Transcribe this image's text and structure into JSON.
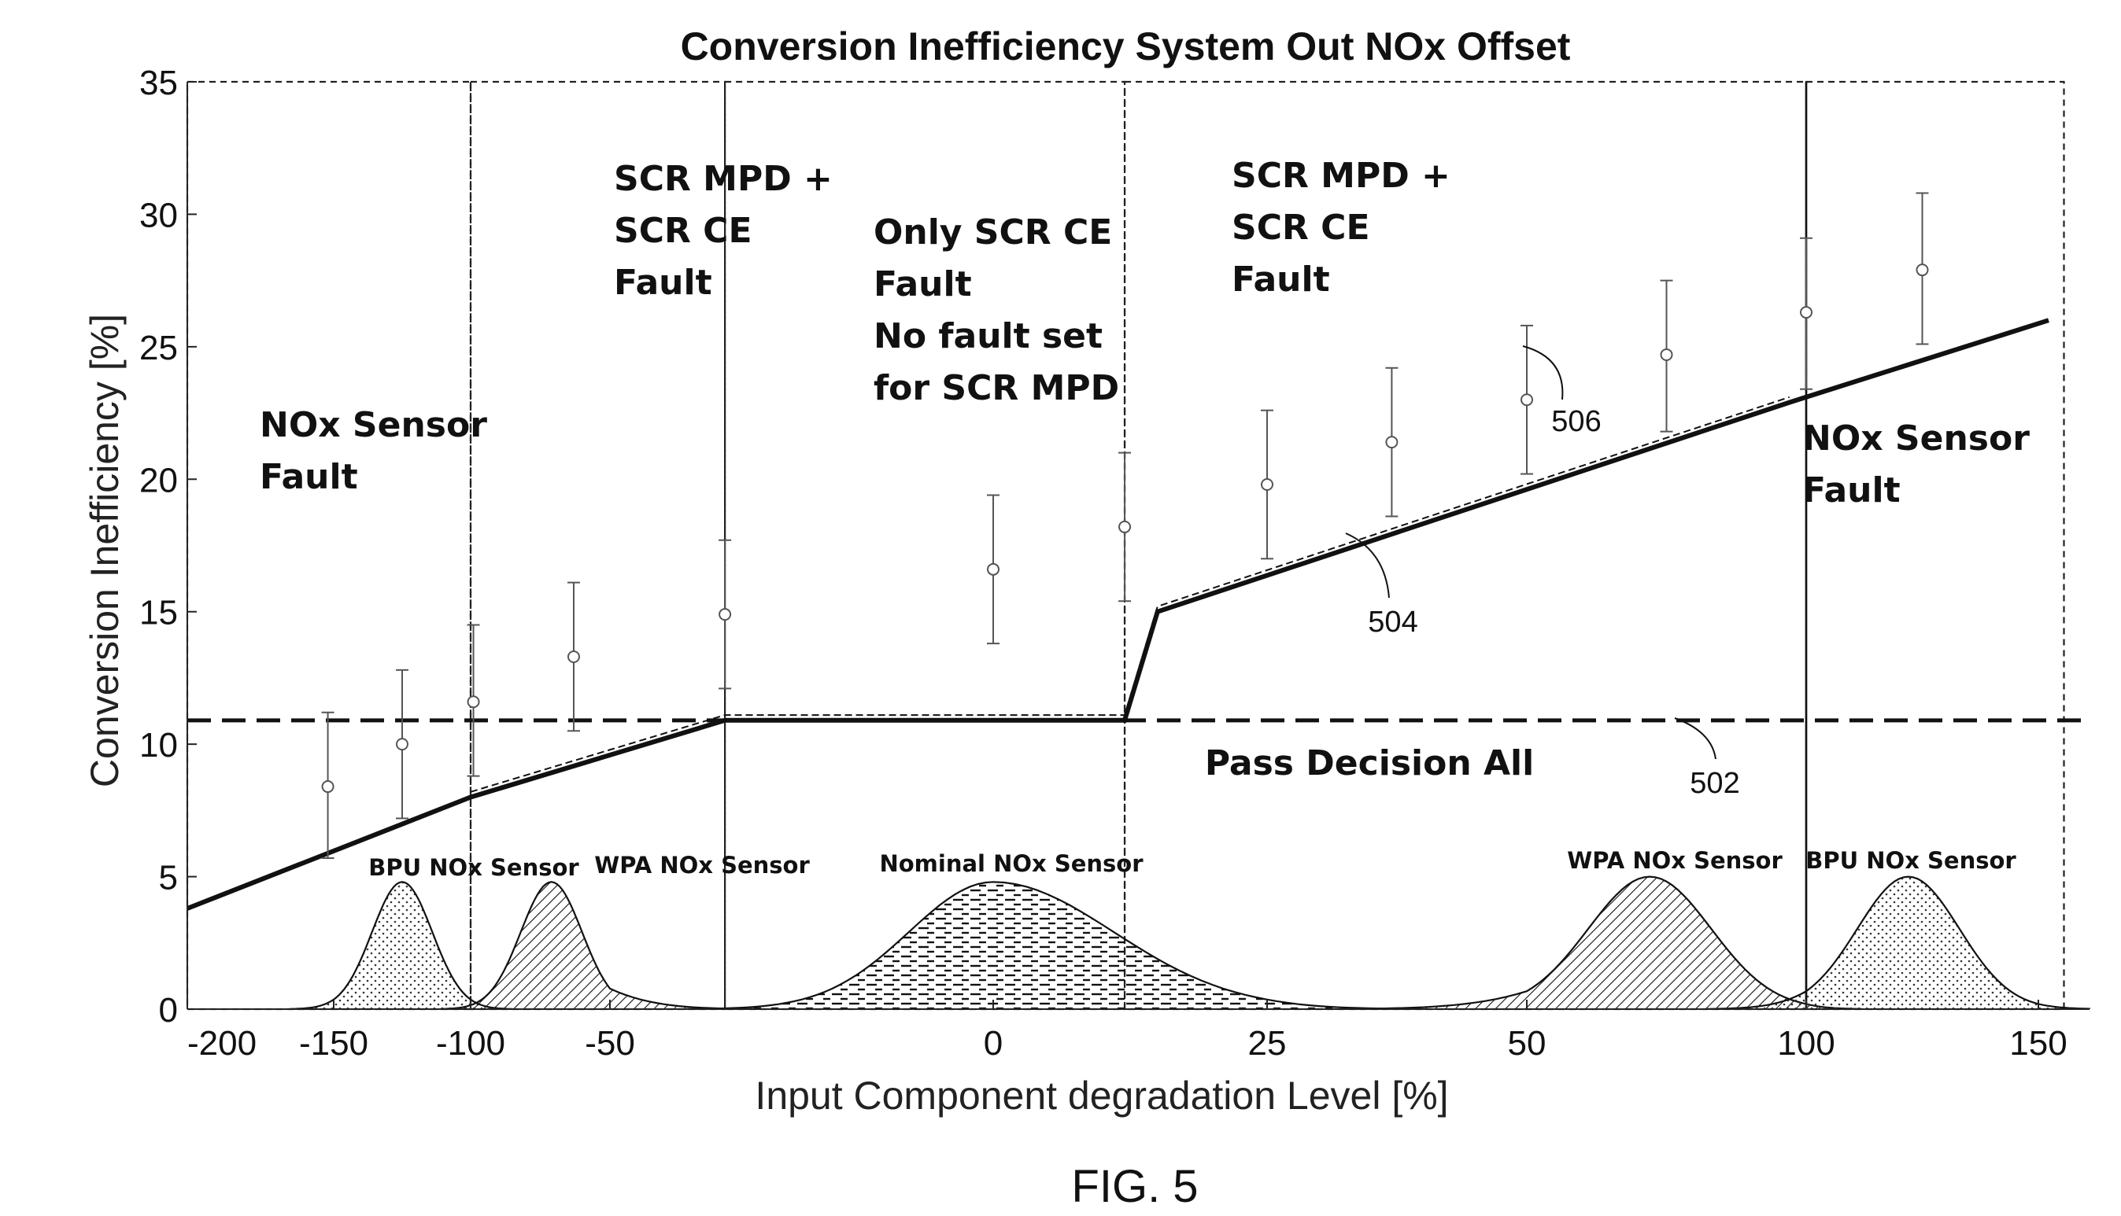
{
  "chart_data": {
    "type": "line",
    "title": "Conversion Inefficiency System Out NOx Offset",
    "xlabel": "Input Component degradation Level [%]",
    "ylabel": "Conversion Inefficiency [%]",
    "xlim": [
      -200,
      160
    ],
    "ylim": [
      0,
      35
    ],
    "x_ticks": [
      -200,
      -150,
      -100,
      -50,
      0,
      25,
      50,
      100,
      150
    ],
    "x_tick_labels": [
      "-200",
      "-150",
      "-100",
      "-50",
      "0",
      "25",
      "50",
      "100",
      "150"
    ],
    "y_ticks": [
      0,
      5,
      10,
      15,
      20,
      25,
      30,
      35
    ],
    "y_tick_labels": [
      "0",
      "5",
      "10",
      "15",
      "20",
      "25",
      "30",
      "35"
    ],
    "threshold": {
      "y": 10.9,
      "ref": "502",
      "label": "Pass Decision All"
    },
    "series": [
      {
        "ref": "504",
        "x": [
          -200,
          -100,
          -35,
          12,
          15,
          97,
          152
        ],
        "y": [
          3.8,
          8.0,
          10.9,
          10.9,
          15.0,
          22.9,
          26.0
        ]
      },
      {
        "ref": "506",
        "x": [
          -100,
          -35,
          12,
          15,
          97
        ],
        "y": [
          8.2,
          11.1,
          11.1,
          15.2,
          23.1
        ]
      }
    ],
    "error_bars": [
      {
        "x": -152,
        "y": 8.4,
        "low": 5.7,
        "high": 11.2
      },
      {
        "x": -125,
        "y": 10.0,
        "low": 7.2,
        "high": 12.8
      },
      {
        "x": -99,
        "y": 11.6,
        "low": 8.8,
        "high": 14.5
      },
      {
        "x": -63,
        "y": 13.3,
        "low": 10.5,
        "high": 16.1
      },
      {
        "x": -35,
        "y": 14.9,
        "low": 12.1,
        "high": 17.7
      },
      {
        "x": 0,
        "y": 16.6,
        "low": 13.8,
        "high": 19.4
      },
      {
        "x": 12,
        "y": 18.2,
        "low": 15.4,
        "high": 21.0
      },
      {
        "x": 25,
        "y": 19.8,
        "low": 17.0,
        "high": 22.6
      },
      {
        "x": 37,
        "y": 21.4,
        "low": 18.6,
        "high": 24.2
      },
      {
        "x": 50,
        "y": 23.0,
        "low": 20.2,
        "high": 25.8
      },
      {
        "x": 75,
        "y": 24.7,
        "low": 21.8,
        "high": 27.5
      },
      {
        "x": 100,
        "y": 26.3,
        "low": 23.4,
        "high": 29.1
      },
      {
        "x": 125,
        "y": 27.9,
        "low": 25.1,
        "high": 30.8
      }
    ],
    "regions": [
      {
        "lines": [
          "NOx Sensor",
          "Fault"
        ],
        "x0": -200,
        "x1": -100
      },
      {
        "lines": [
          "SCR MPD +",
          "SCR CE",
          "Fault"
        ],
        "x0": -100,
        "x1": -35
      },
      {
        "lines": [
          "Only SCR CE",
          "Fault",
          "No fault set",
          "for SCR MPD"
        ],
        "x0": -35,
        "x1": 12
      },
      {
        "lines": [
          "SCR MPD +",
          "SCR CE",
          "Fault"
        ],
        "x0": 12,
        "x1": 100
      },
      {
        "lines": [
          "NOx Sensor",
          "Fault"
        ],
        "x0": 100,
        "x1": 155
      }
    ],
    "distributions": [
      {
        "label": "BPU NOx Sensor",
        "center": -125,
        "peak": 4.8,
        "fill": "dots"
      },
      {
        "label": "WPA NOx Sensor",
        "center": -71,
        "peak": 4.8,
        "fill": "hatch"
      },
      {
        "label": "Nominal NOx Sensor",
        "center": 0,
        "peak": 4.8,
        "fill": "dashes"
      },
      {
        "label": "WPA NOx Sensor",
        "center": 72,
        "peak": 5.0,
        "fill": "hatch"
      },
      {
        "label": "BPU NOx Sensor",
        "center": 122,
        "peak": 5.0,
        "fill": "dots"
      }
    ],
    "annotations": [
      {
        "text": "506",
        "x": 55,
        "y": 22.3
      },
      {
        "text": "504",
        "x": 32,
        "y": 14.1
      },
      {
        "text": "502",
        "x": 82,
        "y": 7.9
      }
    ],
    "grid": false
  },
  "caption": "FIG. 5"
}
